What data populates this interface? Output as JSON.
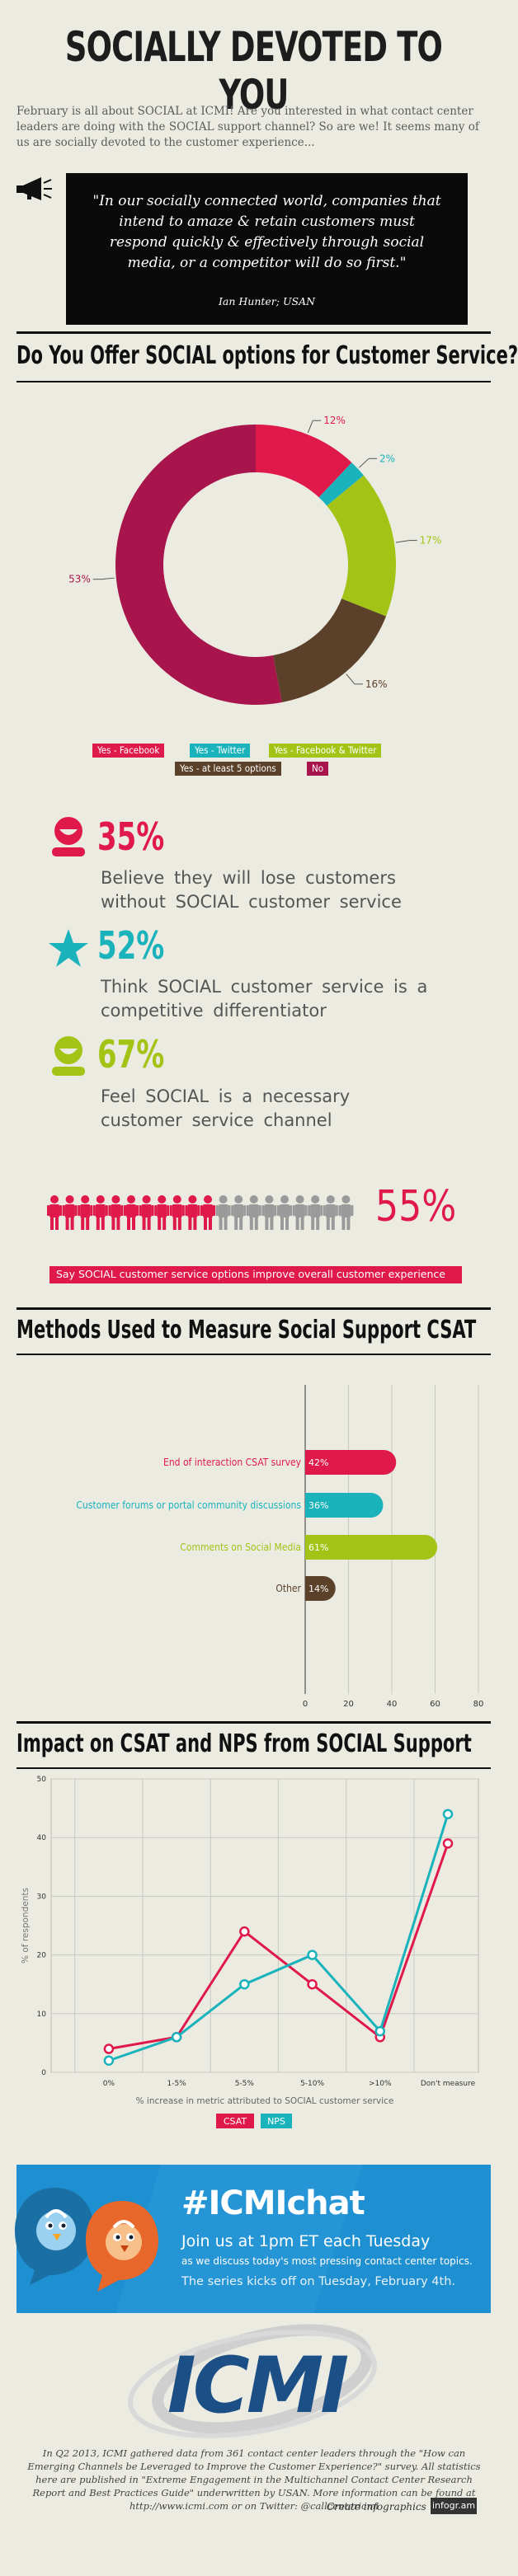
{
  "header": {
    "title": "SOCIALLY DEVOTED TO YOU",
    "intro": "February is all about SOCIAL at ICMI! Are you interested in what contact center leaders are doing with the SOCIAL support channel? So are we! It seems many of us are socially devoted to the customer experience..."
  },
  "quote": {
    "text": "\"In our socially connected world, companies that intend to amaze & retain customers must respond quickly & effectively through social media, or a competitor will do so first.\"",
    "author": "Ian Hunter; USAN"
  },
  "section1": {
    "title": "Do You Offer SOCIAL options for Customer Service?"
  },
  "chart_data": [
    {
      "type": "pie",
      "title": "Do You Offer SOCIAL options for Customer Service?",
      "slices": [
        {
          "label": "Yes - Facebook",
          "value": 12,
          "display": "12%",
          "color": "#e0194b"
        },
        {
          "label": "Yes - Twitter",
          "value": 2,
          "display": "2%",
          "color": "#1ab3bb"
        },
        {
          "label": "Yes - Facebook & Twitter",
          "value": 17,
          "display": "17%",
          "color": "#a3c416"
        },
        {
          "label": "Yes - at least 5 options",
          "value": 16,
          "display": "16%",
          "color": "#5b4129"
        },
        {
          "label": "No",
          "value": 53,
          "display": "53%",
          "color": "#a8154c"
        }
      ]
    },
    {
      "type": "bar",
      "title": "Methods Used to Measure Social Support CSAT",
      "categories": [
        "End of interaction CSAT survey",
        "Customer forums or portal community discussions",
        "Comments on Social Media",
        "Other"
      ],
      "values": [
        42,
        36,
        61,
        14
      ],
      "display": [
        "42%",
        "36%",
        "61%",
        "14%"
      ],
      "colors": [
        "#e0194b",
        "#1ab3bb",
        "#a3c416",
        "#5b4129"
      ],
      "xticks": [
        "0",
        "20",
        "40",
        "60",
        "80"
      ],
      "xlim": [
        0,
        80
      ]
    },
    {
      "type": "line",
      "title": "Impact on CSAT and NPS from SOCIAL Support",
      "categories": [
        "0%",
        "1-5%",
        "5-5%",
        "5-10%",
        ">10%",
        "Don't measure"
      ],
      "xlabel": "% increase in metric attributed to SOCIAL customer service",
      "ylabel": "% of respondents",
      "yticks": [
        "0",
        "10",
        "20",
        "30",
        "40",
        "50"
      ],
      "ylim": [
        0,
        50
      ],
      "series": [
        {
          "name": "CSAT",
          "color": "#e0194b",
          "values": [
            4,
            6,
            24,
            15,
            6,
            39
          ]
        },
        {
          "name": "NPS",
          "color": "#1ab3bb",
          "values": [
            2,
            6,
            15,
            20,
            7,
            44
          ]
        }
      ]
    }
  ],
  "stats": [
    {
      "value": "35%",
      "text_line1": "Believe  they will  lose customers",
      "text_line2": "without SOCIAL    customer  service",
      "color": "#e0194b",
      "icon": "person-icon"
    },
    {
      "value": "52%",
      "text_line1": "Think  SOCIAL    customer  service  is a",
      "text_line2": "competitive   differentiator",
      "color": "#1ab3bb",
      "icon": "star-icon"
    },
    {
      "value": "67%",
      "text_line1": "Feel  SOCIAL     is a necessary",
      "text_line2": "customer   service   channel",
      "color": "#a3c416",
      "icon": "person-icon"
    }
  ],
  "people_stat": {
    "value": "55%",
    "label": "Say SOCIAL customer service options improve overall customer experience",
    "filled": 11,
    "total": 20,
    "color": "#e0194b",
    "muted": "#9a9a9a"
  },
  "section2": {
    "title": "Methods Used to Measure Social Support CSAT"
  },
  "section3": {
    "title": "Impact on CSAT and NPS from SOCIAL Support"
  },
  "chat": {
    "hashtag": "#ICMIchat",
    "line1": "Join us at 1pm ET each Tuesday",
    "line2": "as we discuss today's most pressing contact center topics.",
    "line3": "The series kicks off on Tuesday, February 4th."
  },
  "logo": {
    "text": "ICMI"
  },
  "footer": {
    "text": "In Q2 2013, ICMI gathered data from 361 contact center leaders through the \"How can Emerging Channels be Leveraged to Improve the Customer Experience?\" survey. All statistics here are published in \"Extreme Engagement in the Multichannel Contact Center Research Report and Best Practices Guide\" underwritten by USAN. More information can be found at http://www.icmi.com or on Twitter: @callcentericmi",
    "credit": "Create infographics",
    "brand": "infogr.am"
  }
}
